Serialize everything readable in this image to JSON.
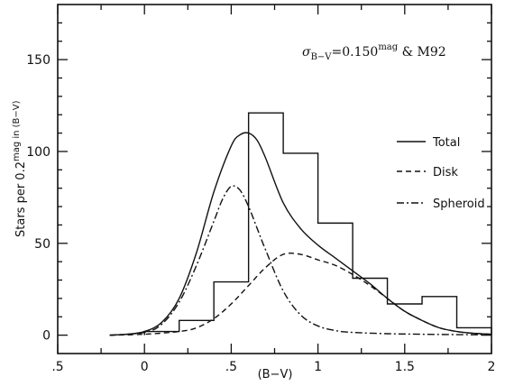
{
  "chart_data": {
    "type": "line",
    "title": "",
    "xlabel": "(B−V)",
    "ylabel": {
      "main": "Stars per 0.2",
      "superscript": "mag in (B−V)"
    },
    "annotation": {
      "sigma": "σ",
      "subscript": "B−V",
      "value": "=0.150",
      "superscript": "mag",
      "tail": " & M92"
    },
    "xlim": [
      -0.5,
      2.0
    ],
    "ylim": [
      -10,
      180
    ],
    "x_ticks": [
      -0.5,
      0,
      0.5,
      1.0,
      1.5,
      2.0
    ],
    "x_tick_labels": [
      ".5",
      "0",
      ".5",
      "1",
      "1.5",
      "2"
    ],
    "y_ticks": [
      0,
      50,
      100,
      150
    ],
    "y_tick_labels": [
      "0",
      "50",
      "100",
      "150"
    ],
    "legend_position": "right",
    "histogram": {
      "bin_edges": [
        0.0,
        0.2,
        0.4,
        0.6,
        0.8,
        1.0,
        1.2,
        1.4,
        1.6,
        1.8,
        2.0
      ],
      "counts": [
        2,
        8,
        29,
        121,
        99,
        61,
        31,
        17,
        21,
        4
      ]
    },
    "series": [
      {
        "name": "Total",
        "style": "solid",
        "x": [
          -0.2,
          -0.1,
          0.0,
          0.1,
          0.2,
          0.3,
          0.4,
          0.5,
          0.55,
          0.6,
          0.65,
          0.7,
          0.8,
          0.9,
          1.0,
          1.1,
          1.2,
          1.3,
          1.4,
          1.5,
          1.6,
          1.7,
          1.8,
          1.9,
          2.0
        ],
        "y": [
          0,
          0.5,
          2,
          7,
          20,
          45,
          78,
          103,
          109,
          110,
          106,
          96,
          72,
          58,
          49,
          42,
          35,
          28,
          20,
          13,
          8,
          4,
          2,
          1,
          0.5
        ]
      },
      {
        "name": "Disk",
        "style": "dashed",
        "x": [
          -0.2,
          0.0,
          0.2,
          0.3,
          0.4,
          0.5,
          0.6,
          0.7,
          0.8,
          0.9,
          1.0,
          1.1,
          1.2,
          1.3,
          1.4,
          1.5,
          1.6,
          1.7,
          1.8,
          1.9,
          2.0
        ],
        "y": [
          0,
          0.5,
          2,
          4,
          9,
          17,
          27,
          37,
          44,
          44,
          41,
          38,
          33,
          27,
          20,
          13,
          8,
          4,
          2,
          1,
          0.5
        ]
      },
      {
        "name": "Spheroid",
        "style": "dashdot",
        "x": [
          -0.2,
          0.0,
          0.1,
          0.2,
          0.3,
          0.4,
          0.45,
          0.5,
          0.55,
          0.6,
          0.65,
          0.7,
          0.8,
          0.9,
          1.0,
          1.1,
          1.2,
          1.4,
          1.6,
          1.8,
          2.0
        ],
        "y": [
          0,
          1.5,
          6,
          18,
          38,
          62,
          74,
          81,
          79,
          70,
          58,
          46,
          24,
          11,
          5,
          2.5,
          1.5,
          0.8,
          0.5,
          0.3,
          0.2
        ]
      }
    ]
  }
}
